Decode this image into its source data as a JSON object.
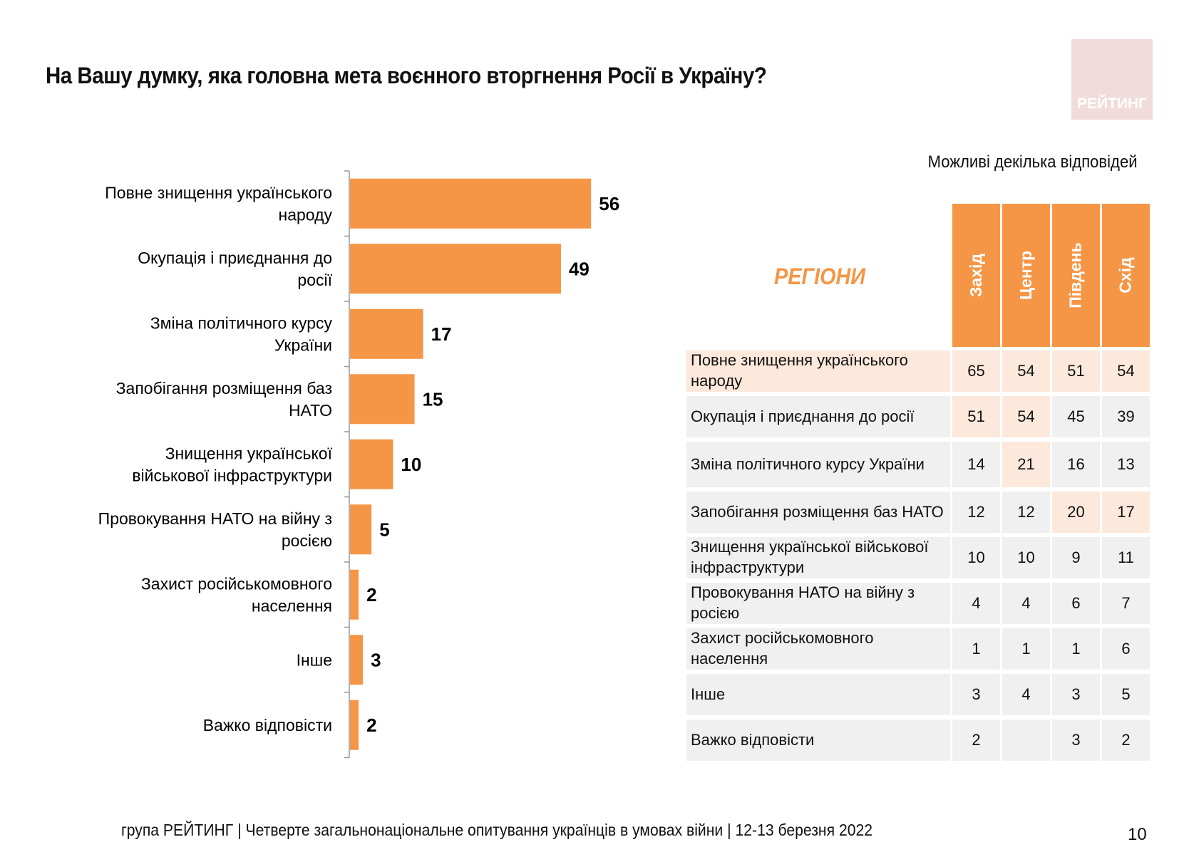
{
  "title": "На Вашу думку, яка головна мета воєнного вторгнення Росії в Україну?",
  "logo_text": "РЕЙТИНГ",
  "note": "Можливі декілька відповідей",
  "footer": "група РЕЙТИНГ | Четверте загальнонаціональне опитування українців в умовах війни | 12-13 березня 2022",
  "page_number": "10",
  "colors": {
    "bar": "#f59647",
    "highlight": "#fce9dc",
    "row_bg": "#f0f0f0"
  },
  "chart_data": {
    "type": "bar",
    "orientation": "horizontal",
    "categories": [
      "Повне знищення українського народу",
      "Окупація і приєднання до росії",
      "Зміна політичного курсу України",
      "Запобігання розміщення баз НАТО",
      "Знищення української військової інфраструктури",
      "Провокування НАТО на війну з росією",
      "Захист російськомовного населення",
      "Інше",
      "Важко відповісти"
    ],
    "values": [
      56,
      49,
      17,
      15,
      10,
      5,
      2,
      3,
      2
    ],
    "grid": false
  },
  "table": {
    "corner_label": "РЕГІОНИ",
    "columns": [
      "Захід",
      "Центр",
      "Південь",
      "Схід"
    ],
    "rows": [
      {
        "label": "Повне знищення українського народу",
        "values": [
          "65",
          "54",
          "51",
          "54"
        ],
        "highlight": [
          true,
          true,
          true,
          true,
          true
        ]
      },
      {
        "label": "Окупація і приєднання до росії",
        "values": [
          "51",
          "54",
          "45",
          "39"
        ],
        "highlight": [
          false,
          true,
          true,
          false,
          false
        ]
      },
      {
        "label": "Зміна політичного курсу України",
        "values": [
          "14",
          "21",
          "16",
          "13"
        ],
        "highlight": [
          false,
          false,
          true,
          false,
          false
        ]
      },
      {
        "label": "Запобігання розміщення баз НАТО",
        "values": [
          "12",
          "12",
          "20",
          "17"
        ],
        "highlight": [
          false,
          false,
          false,
          true,
          true
        ]
      },
      {
        "label": "Знищення української військової інфраструктури",
        "values": [
          "10",
          "10",
          "9",
          "11"
        ],
        "highlight": [
          false,
          false,
          false,
          false,
          false
        ]
      },
      {
        "label": "Провокування НАТО на війну з росією",
        "values": [
          "4",
          "4",
          "6",
          "7"
        ],
        "highlight": [
          false,
          false,
          false,
          false,
          false
        ]
      },
      {
        "label": "Захист російськомовного населення",
        "values": [
          "1",
          "1",
          "1",
          "6"
        ],
        "highlight": [
          false,
          false,
          false,
          false,
          false
        ]
      },
      {
        "label": "Інше",
        "values": [
          "3",
          "4",
          "3",
          "5"
        ],
        "highlight": [
          false,
          false,
          false,
          false,
          false
        ]
      },
      {
        "label": "Важко відповісти",
        "values": [
          "2",
          "",
          "3",
          "2"
        ],
        "highlight": [
          false,
          false,
          false,
          false,
          false
        ]
      }
    ]
  }
}
